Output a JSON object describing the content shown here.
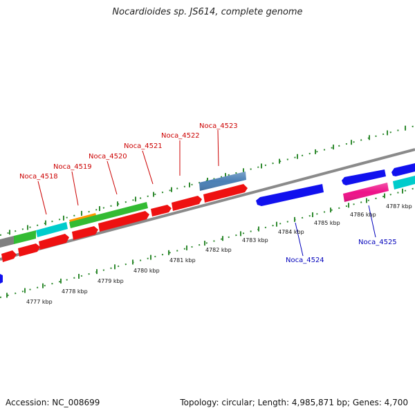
{
  "title": "Nocardioides sp. JS614, complete genome",
  "footer": {
    "accession": "Accession: NC_008699",
    "summary": "Topology: circular; Length: 4,985,871 bp; Genes: 4,700"
  },
  "colors": {
    "backbone": "#8a8a8a",
    "ticks": "#2f8a2f",
    "forward_label": "#cc0000",
    "reverse_label": "#0000bb"
  },
  "tick_labels": [
    "4777 kbp",
    "4778 kbp",
    "4779 kbp",
    "4780 kbp",
    "4781 kbp",
    "4782 kbp",
    "4783 kbp",
    "4784 kbp",
    "4785 kbp",
    "4786 kbp",
    "4787 kbp"
  ],
  "gene_labels": {
    "forward": [
      "Noca_4518",
      "Noca_4519",
      "Noca_4520",
      "Noca_4521",
      "Noca_4522",
      "Noca_4523"
    ],
    "reverse": [
      "Noca_4524",
      "Noca_4525"
    ]
  }
}
